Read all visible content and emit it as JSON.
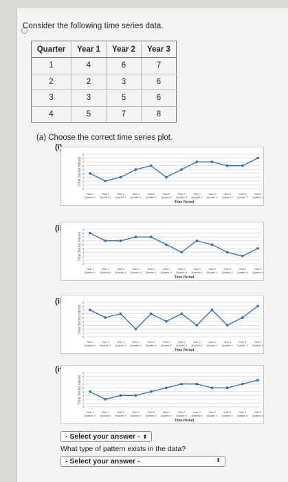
{
  "question": "Consider the following time series data.",
  "table": {
    "headers": [
      "Quarter",
      "Year 1",
      "Year 2",
      "Year 3"
    ],
    "rows": [
      [
        "1",
        "4",
        "6",
        "7"
      ],
      [
        "2",
        "2",
        "3",
        "6"
      ],
      [
        "3",
        "3",
        "5",
        "6"
      ],
      [
        "4",
        "5",
        "7",
        "8"
      ]
    ]
  },
  "part_a": "(a) Choose the correct time series plot.",
  "options": [
    "(i)",
    "(ii)",
    "(iii)",
    "(iv)"
  ],
  "select1": "- Select your answer -",
  "pattern_question": "What type of pattern exists in the data?",
  "select2": "- Select your answer -",
  "chart_data": [
    {
      "type": "line",
      "xlabel": "Time Period",
      "ylabel": "Time Series Values",
      "values": [
        4,
        2,
        3,
        5,
        6,
        3,
        5,
        7,
        7,
        6,
        6,
        8
      ]
    },
    {
      "type": "line",
      "xlabel": "Time Period",
      "ylabel": "Time Series Values",
      "values": [
        8,
        6,
        6,
        7,
        7,
        5,
        3,
        6,
        5,
        3,
        2,
        4
      ]
    },
    {
      "type": "line",
      "xlabel": "Time Period",
      "ylabel": "Time Series Values",
      "values": [
        7,
        5,
        6,
        2,
        6,
        4,
        6,
        3,
        7,
        3,
        5,
        8
      ]
    },
    {
      "type": "line",
      "xlabel": "Time Period",
      "ylabel": "Time Series Values",
      "values": [
        4,
        2,
        3,
        3,
        4,
        5,
        6,
        6,
        5,
        5,
        6,
        7
      ]
    }
  ]
}
